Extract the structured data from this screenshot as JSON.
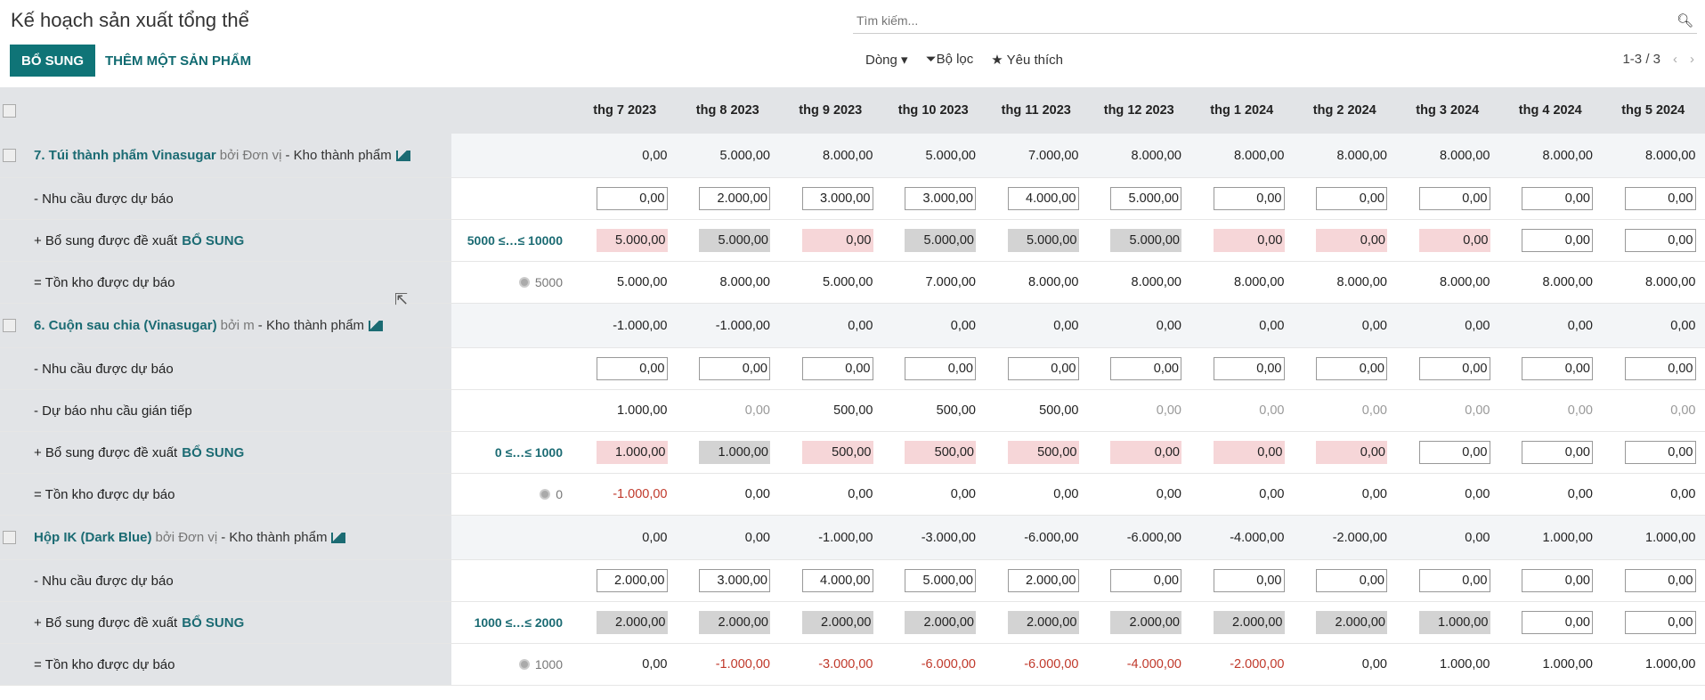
{
  "header": {
    "title": "Kế hoạch sản xuất tổng thể",
    "replenish_button": "BỔ SUNG",
    "add_product_button": "THÊM MỘT SẢN PHẨM",
    "search_placeholder": "Tìm kiếm...",
    "rows_menu": "Dòng",
    "filter": "Bộ lọc",
    "favorites": "Yêu thích",
    "pager": "1-3 / 3"
  },
  "months": [
    "thg 7 2023",
    "thg 8 2023",
    "thg 9 2023",
    "thg 10 2023",
    "thg 11 2023",
    "thg 12 2023",
    "thg 1 2024",
    "thg 2 2024",
    "thg 3 2024",
    "thg 4 2024",
    "thg 5 2024"
  ],
  "products": [
    {
      "name": "7. Túi thành phẩm Vinasugar",
      "by": "bởi Đơn vị",
      "warehouse": "- Kho thành phẩm",
      "range": "5000 ≤…≤ 10000",
      "safety": "5000",
      "header_values": [
        "0,00",
        "5.000,00",
        "8.000,00",
        "5.000,00",
        "7.000,00",
        "8.000,00",
        "8.000,00",
        "8.000,00",
        "8.000,00",
        "8.000,00",
        "8.000,00"
      ],
      "rows": [
        {
          "label": "- Nhu cầu được dự báo",
          "kind": "forecast",
          "cells": [
            [
              "0,00",
              "input"
            ],
            [
              "2.000,00",
              "input"
            ],
            [
              "3.000,00",
              "input"
            ],
            [
              "3.000,00",
              "input"
            ],
            [
              "4.000,00",
              "input"
            ],
            [
              "5.000,00",
              "input"
            ],
            [
              "0,00",
              "input"
            ],
            [
              "0,00",
              "input"
            ],
            [
              "0,00",
              "input"
            ],
            [
              "0,00",
              "input"
            ],
            [
              "0,00",
              "input"
            ]
          ]
        },
        {
          "label": "+ Bổ sung được đề xuất",
          "action": "BỔ SUNG",
          "kind": "replenish",
          "cells": [
            [
              "5.000,00",
              "pink"
            ],
            [
              "5.000,00",
              "gray"
            ],
            [
              "0,00",
              "pink"
            ],
            [
              "5.000,00",
              "gray"
            ],
            [
              "5.000,00",
              "gray"
            ],
            [
              "5.000,00",
              "gray"
            ],
            [
              "0,00",
              "pink"
            ],
            [
              "0,00",
              "pink"
            ],
            [
              "0,00",
              "pink"
            ],
            [
              "0,00",
              "input"
            ],
            [
              "0,00",
              "input"
            ]
          ]
        },
        {
          "label": "= Tồn kho được dự báo",
          "kind": "stock",
          "cells": [
            [
              "5.000,00",
              ""
            ],
            [
              "8.000,00",
              ""
            ],
            [
              "5.000,00",
              ""
            ],
            [
              "7.000,00",
              ""
            ],
            [
              "8.000,00",
              ""
            ],
            [
              "8.000,00",
              ""
            ],
            [
              "8.000,00",
              ""
            ],
            [
              "8.000,00",
              ""
            ],
            [
              "8.000,00",
              ""
            ],
            [
              "8.000,00",
              ""
            ],
            [
              "8.000,00",
              ""
            ]
          ]
        }
      ]
    },
    {
      "name": "6. Cuộn sau chia (Vinasugar)",
      "by": "bởi m",
      "warehouse": "- Kho thành phẩm",
      "range": "0 ≤…≤ 1000",
      "safety": "0",
      "header_values": [
        "-1.000,00",
        "-1.000,00",
        "0,00",
        "0,00",
        "0,00",
        "0,00",
        "0,00",
        "0,00",
        "0,00",
        "0,00",
        "0,00"
      ],
      "rows": [
        {
          "label": "- Nhu cầu được dự báo",
          "kind": "forecast",
          "cells": [
            [
              "0,00",
              "input"
            ],
            [
              "0,00",
              "input"
            ],
            [
              "0,00",
              "input"
            ],
            [
              "0,00",
              "input"
            ],
            [
              "0,00",
              "input"
            ],
            [
              "0,00",
              "input"
            ],
            [
              "0,00",
              "input"
            ],
            [
              "0,00",
              "input"
            ],
            [
              "0,00",
              "input"
            ],
            [
              "0,00",
              "input"
            ],
            [
              "0,00",
              "input"
            ]
          ]
        },
        {
          "label": "- Dự báo nhu cầu gián tiếp",
          "kind": "indirect",
          "cells": [
            [
              "1.000,00",
              ""
            ],
            [
              "0,00",
              "muted"
            ],
            [
              "500,00",
              ""
            ],
            [
              "500,00",
              ""
            ],
            [
              "500,00",
              ""
            ],
            [
              "0,00",
              "muted"
            ],
            [
              "0,00",
              "muted"
            ],
            [
              "0,00",
              "muted"
            ],
            [
              "0,00",
              "muted"
            ],
            [
              "0,00",
              "muted"
            ],
            [
              "0,00",
              "muted"
            ]
          ]
        },
        {
          "label": "+ Bổ sung được đề xuất",
          "action": "BỔ SUNG",
          "kind": "replenish",
          "cells": [
            [
              "1.000,00",
              "pink"
            ],
            [
              "1.000,00",
              "gray"
            ],
            [
              "500,00",
              "pink"
            ],
            [
              "500,00",
              "pink"
            ],
            [
              "500,00",
              "pink"
            ],
            [
              "0,00",
              "pink"
            ],
            [
              "0,00",
              "pink"
            ],
            [
              "0,00",
              "pink"
            ],
            [
              "0,00",
              "input"
            ],
            [
              "0,00",
              "input"
            ],
            [
              "0,00",
              "input"
            ]
          ]
        },
        {
          "label": "= Tồn kho được dự báo",
          "kind": "stock",
          "cells": [
            [
              "-1.000,00",
              "red"
            ],
            [
              "0,00",
              ""
            ],
            [
              "0,00",
              ""
            ],
            [
              "0,00",
              ""
            ],
            [
              "0,00",
              ""
            ],
            [
              "0,00",
              ""
            ],
            [
              "0,00",
              ""
            ],
            [
              "0,00",
              ""
            ],
            [
              "0,00",
              ""
            ],
            [
              "0,00",
              ""
            ],
            [
              "0,00",
              ""
            ]
          ]
        }
      ]
    },
    {
      "name": "Hộp IK (Dark Blue)",
      "by": "bởi Đơn vị",
      "warehouse": "- Kho thành phẩm",
      "range": "1000 ≤…≤ 2000",
      "safety": "1000",
      "header_values": [
        "0,00",
        "0,00",
        "-1.000,00",
        "-3.000,00",
        "-6.000,00",
        "-6.000,00",
        "-4.000,00",
        "-2.000,00",
        "0,00",
        "1.000,00",
        "1.000,00"
      ],
      "rows": [
        {
          "label": "- Nhu cầu được dự báo",
          "kind": "forecast",
          "cells": [
            [
              "2.000,00",
              "input"
            ],
            [
              "3.000,00",
              "input"
            ],
            [
              "4.000,00",
              "input"
            ],
            [
              "5.000,00",
              "input"
            ],
            [
              "2.000,00",
              "input"
            ],
            [
              "0,00",
              "input"
            ],
            [
              "0,00",
              "input"
            ],
            [
              "0,00",
              "input"
            ],
            [
              "0,00",
              "input"
            ],
            [
              "0,00",
              "input"
            ],
            [
              "0,00",
              "input"
            ]
          ]
        },
        {
          "label": "+ Bổ sung được đề xuất",
          "action": "BỔ SUNG",
          "kind": "replenish",
          "cells": [
            [
              "2.000,00",
              "gray"
            ],
            [
              "2.000,00",
              "gray"
            ],
            [
              "2.000,00",
              "gray"
            ],
            [
              "2.000,00",
              "gray"
            ],
            [
              "2.000,00",
              "gray"
            ],
            [
              "2.000,00",
              "gray"
            ],
            [
              "2.000,00",
              "gray"
            ],
            [
              "2.000,00",
              "gray"
            ],
            [
              "1.000,00",
              "gray"
            ],
            [
              "0,00",
              "input"
            ],
            [
              "0,00",
              "input"
            ]
          ]
        },
        {
          "label": "= Tồn kho được dự báo",
          "kind": "stock",
          "cells": [
            [
              "0,00",
              ""
            ],
            [
              "-1.000,00",
              "red"
            ],
            [
              "-3.000,00",
              "red"
            ],
            [
              "-6.000,00",
              "red"
            ],
            [
              "-6.000,00",
              "red"
            ],
            [
              "-4.000,00",
              "red"
            ],
            [
              "-2.000,00",
              "red"
            ],
            [
              "0,00",
              ""
            ],
            [
              "1.000,00",
              ""
            ],
            [
              "1.000,00",
              ""
            ],
            [
              "1.000,00",
              ""
            ]
          ]
        }
      ]
    }
  ]
}
